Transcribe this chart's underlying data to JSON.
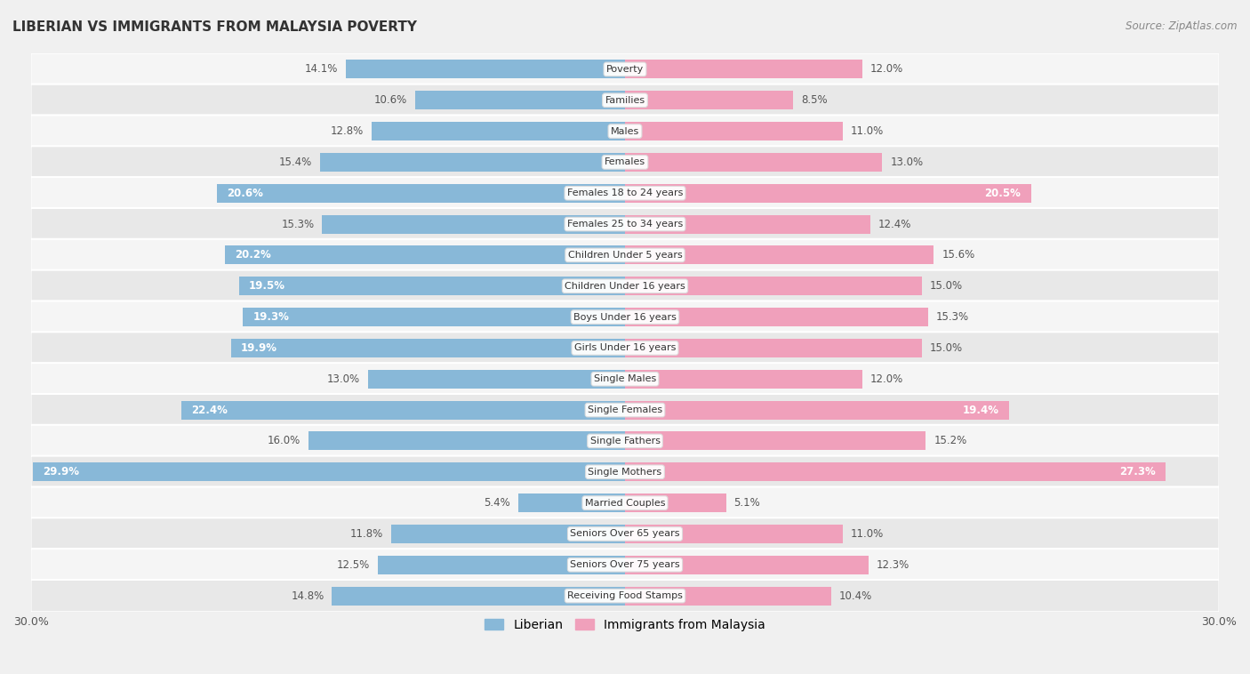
{
  "title": "LIBERIAN VS IMMIGRANTS FROM MALAYSIA POVERTY",
  "source": "Source: ZipAtlas.com",
  "categories": [
    "Poverty",
    "Families",
    "Males",
    "Females",
    "Females 18 to 24 years",
    "Females 25 to 34 years",
    "Children Under 5 years",
    "Children Under 16 years",
    "Boys Under 16 years",
    "Girls Under 16 years",
    "Single Males",
    "Single Females",
    "Single Fathers",
    "Single Mothers",
    "Married Couples",
    "Seniors Over 65 years",
    "Seniors Over 75 years",
    "Receiving Food Stamps"
  ],
  "liberian": [
    14.1,
    10.6,
    12.8,
    15.4,
    20.6,
    15.3,
    20.2,
    19.5,
    19.3,
    19.9,
    13.0,
    22.4,
    16.0,
    29.9,
    5.4,
    11.8,
    12.5,
    14.8
  ],
  "malaysia": [
    12.0,
    8.5,
    11.0,
    13.0,
    20.5,
    12.4,
    15.6,
    15.0,
    15.3,
    15.0,
    12.0,
    19.4,
    15.2,
    27.3,
    5.1,
    11.0,
    12.3,
    10.4
  ],
  "liberian_color": "#88b8d8",
  "malaysia_color": "#f0a0bb",
  "row_color_odd": "#f5f5f5",
  "row_color_even": "#e8e8e8",
  "background_color": "#f0f0f0",
  "axis_limit": 30.0,
  "bar_height": 0.6,
  "label_inside_threshold_lib": 18.0,
  "label_inside_threshold_mal": 18.0,
  "legend_labels": [
    "Liberian",
    "Immigrants from Malaysia"
  ],
  "title_fontsize": 11,
  "label_fontsize": 8.5,
  "cat_fontsize": 8.0,
  "axis_tick_fontsize": 9
}
